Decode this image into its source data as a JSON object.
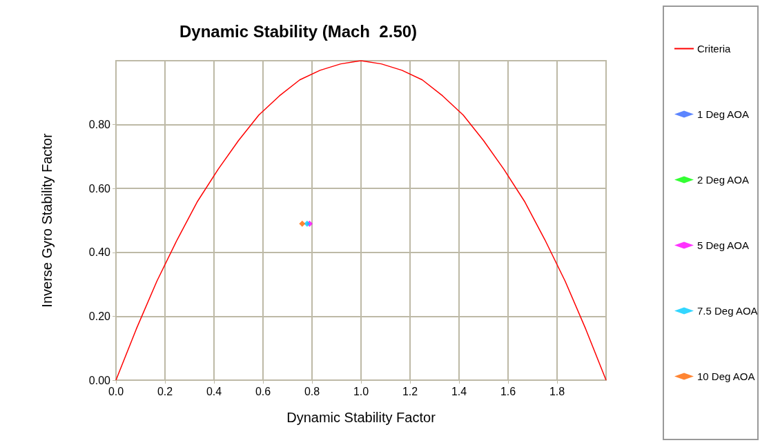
{
  "chart_data": {
    "type": "scatter",
    "title": "Dynamic Stability (Mach  2.50)",
    "xlabel": "Dynamic Stability Factor",
    "ylabel": "Inverse Gyro Stability Factor",
    "xlim": [
      0,
      2
    ],
    "ylim": [
      0,
      1
    ],
    "xticks": [
      {
        "value": 0,
        "label": "0.0"
      },
      {
        "value": 0.2,
        "label": "0.2"
      },
      {
        "value": 0.4,
        "label": "0.4"
      },
      {
        "value": 0.6,
        "label": "0.6"
      },
      {
        "value": 0.8,
        "label": "0.8"
      },
      {
        "value": 1,
        "label": "1.0"
      },
      {
        "value": 1.2,
        "label": "1.2"
      },
      {
        "value": 1.4,
        "label": "1.4"
      },
      {
        "value": 1.6,
        "label": "1.6"
      },
      {
        "value": 1.8,
        "label": "1.8"
      }
    ],
    "yticks": [
      {
        "value": 0,
        "label": "0.00"
      },
      {
        "value": 0.2,
        "label": "0.20"
      },
      {
        "value": 0.4,
        "label": "0.40"
      },
      {
        "value": 0.6,
        "label": "0.60"
      },
      {
        "value": 0.8,
        "label": "0.80"
      }
    ],
    "grid": true,
    "legend": "right",
    "marker": "diamond",
    "series": [
      {
        "name": "Criteria",
        "type": "line",
        "color": "#ff0000",
        "marker": "none",
        "x": [
          0,
          0.083,
          0.167,
          0.25,
          0.333,
          0.417,
          0.5,
          0.583,
          0.667,
          0.75,
          0.833,
          0.917,
          1,
          1.083,
          1.167,
          1.25,
          1.333,
          1.417,
          1.5,
          1.583,
          1.667,
          1.75,
          1.833,
          1.917,
          2
        ],
        "values": [
          0,
          0.16,
          0.31,
          0.44,
          0.56,
          0.66,
          0.75,
          0.83,
          0.89,
          0.94,
          0.97,
          0.99,
          1,
          0.99,
          0.97,
          0.94,
          0.89,
          0.83,
          0.75,
          0.66,
          0.56,
          0.44,
          0.31,
          0.16,
          0
        ]
      },
      {
        "name": "1 Deg AOA",
        "color": "#3366ff",
        "x": [
          null
        ],
        "values": [
          null
        ]
      },
      {
        "name": "2 Deg AOA",
        "color": "#00ff00",
        "x": [
          null
        ],
        "values": [
          null
        ]
      },
      {
        "name": "5 Deg AOA",
        "color": "#ff00ff",
        "x": [
          0.79
        ],
        "values": [
          0.49
        ]
      },
      {
        "name": "7.5 Deg AOA",
        "color": "#00ccff",
        "x": [
          0.78
        ],
        "values": [
          0.49
        ]
      },
      {
        "name": "10 Deg AOA",
        "color": "#ff6600",
        "x": [
          0.76
        ],
        "values": [
          0.49
        ]
      }
    ]
  }
}
